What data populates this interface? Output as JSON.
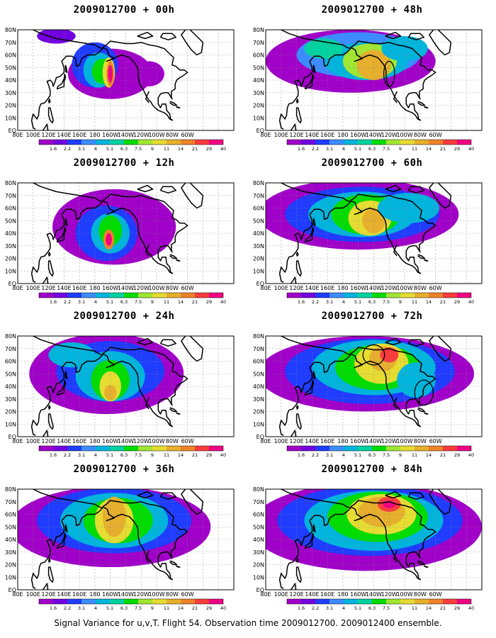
{
  "footer": "Signal Variance for u,v,T. Flight 54. Observation time 2009012700. 2009012400 ensemble.",
  "lat_labels": [
    "80N",
    "70N",
    "60N",
    "50N",
    "40N",
    "30N",
    "20N",
    "10N",
    "EQ"
  ],
  "lon_labels": [
    "80E",
    "100E",
    "120E",
    "140E",
    "160E",
    "180",
    "160W",
    "140W",
    "120W",
    "100W",
    "80W",
    "60W"
  ],
  "colorbar": {
    "labels": [
      "1.6",
      "2.2",
      "3.1",
      "4",
      "5.1",
      "6.3",
      "7.5",
      "9",
      "11",
      "14",
      "21",
      "29",
      "40"
    ],
    "colors": [
      "#a000c8",
      "#7200e0",
      "#1f3cff",
      "#3c8cff",
      "#00b4dc",
      "#00d2a0",
      "#00dc00",
      "#a0e632",
      "#e6dc32",
      "#e6af2d",
      "#f08228",
      "#fa3c3c",
      "#f00082"
    ]
  },
  "panels": [
    {
      "title": "2009012700 + 00h"
    },
    {
      "title": "2009012700 + 48h"
    },
    {
      "title": "2009012700 + 12h"
    },
    {
      "title": "2009012700 + 60h"
    },
    {
      "title": "2009012700 + 24h"
    },
    {
      "title": "2009012700 + 72h"
    },
    {
      "title": "2009012700 + 36h"
    },
    {
      "title": "2009012700 + 84h"
    }
  ]
}
